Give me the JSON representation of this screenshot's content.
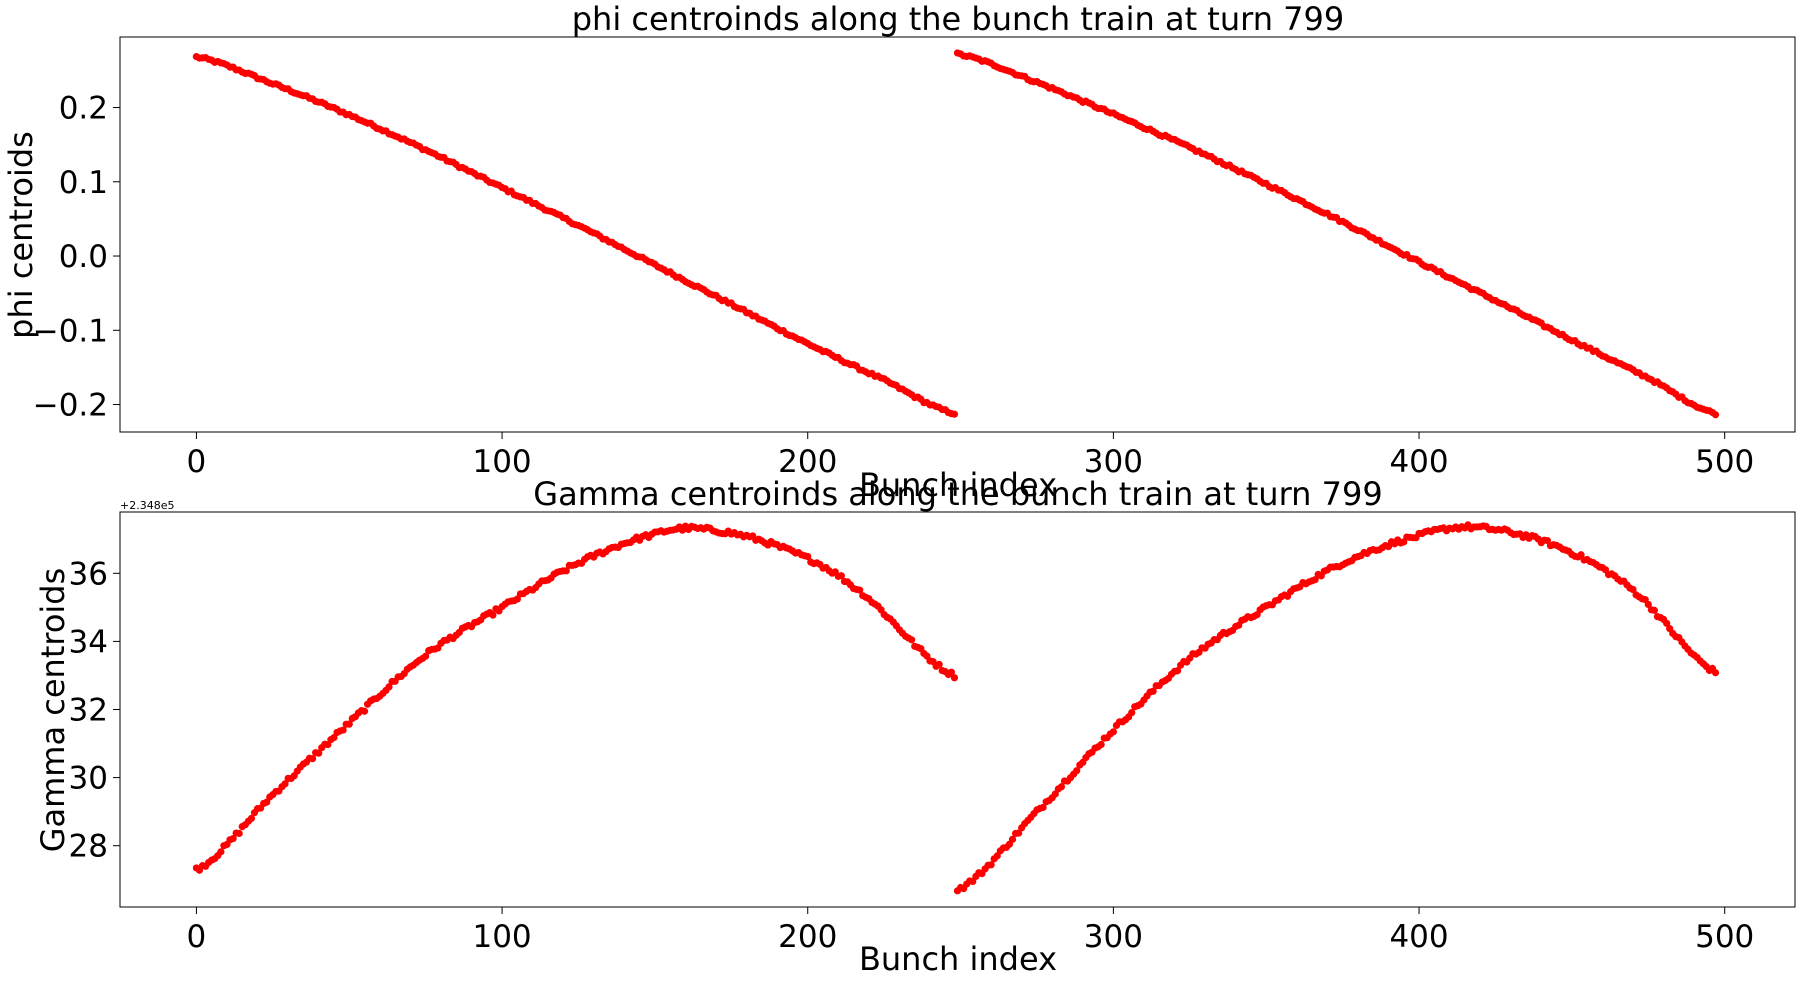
{
  "chart_data": [
    {
      "type": "scatter",
      "title": "phi centroinds along the bunch train at turn 799",
      "xlabel": "Bunch index",
      "ylabel": "phi centroids",
      "xlim": [
        -25,
        523
      ],
      "ylim": [
        -0.237,
        0.295
      ],
      "xticks": [
        0,
        100,
        200,
        300,
        400,
        500
      ],
      "xtick_labels": [
        "0",
        "100",
        "200",
        "300",
        "400",
        "500"
      ],
      "yticks": [
        -0.2,
        -0.1,
        0.0,
        0.1,
        0.2
      ],
      "ytick_labels": [
        "−0.2",
        "−0.1",
        "0.0",
        "0.1",
        "0.2"
      ],
      "marker_color": "#ff0000",
      "grid": false,
      "series": [
        {
          "segments": [
            {
              "x_start": 0,
              "x_end": 248,
              "x_step": 1,
              "x_keys": [
                0,
                25,
                50,
                75,
                100,
                125,
                150,
                175,
                200,
                225,
                248
              ],
              "y_keys": [
                0.268,
                0.232,
                0.19,
                0.143,
                0.092,
                0.041,
                -0.012,
                -0.065,
                -0.118,
                -0.167,
                -0.212
              ]
            },
            {
              "x_start": 249,
              "x_end": 497,
              "x_step": 1,
              "x_keys": [
                249,
                275,
                300,
                325,
                350,
                375,
                400,
                425,
                450,
                475,
                497
              ],
              "y_keys": [
                0.272,
                0.234,
                0.191,
                0.146,
                0.097,
                0.046,
                -0.008,
                -0.06,
                -0.113,
                -0.164,
                -0.212
              ]
            }
          ]
        }
      ]
    },
    {
      "type": "scatter",
      "title": "Gamma centroinds along the bunch train at turn 799",
      "xlabel": "Bunch index",
      "ylabel": "Gamma centroids",
      "y_offset_label": "+2.348e5",
      "xlim": [
        -25,
        523
      ],
      "ylim": [
        26.2,
        37.8
      ],
      "xticks": [
        0,
        100,
        200,
        300,
        400,
        500
      ],
      "xtick_labels": [
        "0",
        "100",
        "200",
        "300",
        "400",
        "500"
      ],
      "yticks": [
        28,
        30,
        32,
        34,
        36
      ],
      "ytick_labels": [
        "28",
        "30",
        "32",
        "34",
        "36"
      ],
      "marker_color": "#ff0000",
      "grid": false,
      "series": [
        {
          "segments": [
            {
              "x_start": 0,
              "x_end": 248,
              "x_step": 1,
              "x_keys": [
                0,
                25,
                50,
                75,
                100,
                125,
                150,
                165,
                190,
                215,
                248
              ],
              "y_keys": [
                27.3,
                29.5,
                31.6,
                33.6,
                35.0,
                36.3,
                37.15,
                37.3,
                36.8,
                35.6,
                33.0
              ]
            },
            {
              "x_start": 249,
              "x_end": 497,
              "x_step": 1,
              "x_keys": [
                249,
                275,
                300,
                325,
                350,
                375,
                400,
                418,
                445,
                470,
                497
              ],
              "y_keys": [
                26.7,
                29.0,
                31.4,
                33.5,
                35.0,
                36.3,
                37.1,
                37.35,
                36.8,
                35.5,
                33.1
              ]
            }
          ]
        }
      ]
    }
  ]
}
